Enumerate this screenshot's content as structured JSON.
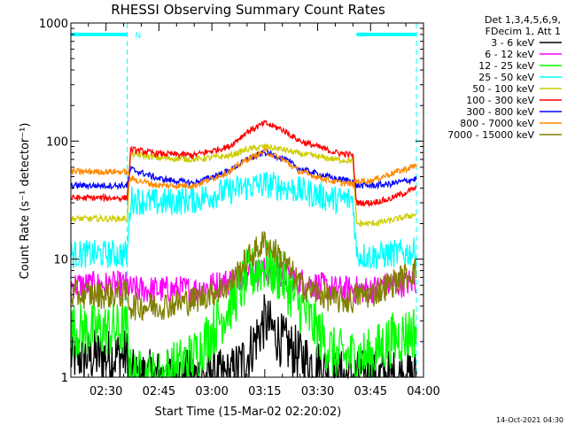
{
  "chart_data": {
    "type": "line",
    "title": "RHESSI Observing Summary Count Rates",
    "xlabel": "Start Time (15-Mar-02 02:20:02)",
    "ylabel": "Count Rate (s⁻¹ detector⁻¹)",
    "x_scale": "time",
    "y_scale": "log",
    "xlim": [
      "02:20:02",
      "04:00"
    ],
    "ylim": [
      1,
      1000
    ],
    "x_ticks": [
      "02:30",
      "02:45",
      "03:00",
      "03:15",
      "03:30",
      "03:45",
      "04:00"
    ],
    "y_ticks": [
      "1",
      "10",
      "100",
      "1000"
    ],
    "grid": false,
    "legend_placement": "outside-right",
    "legend_header": [
      "Det 1,3,4,5,6,9,",
      "FDecim 1, Att 1"
    ],
    "x": [
      "02:20",
      "02:30",
      "02:36",
      "02:37",
      "02:45",
      "02:55",
      "03:05",
      "03:10",
      "03:15",
      "03:20",
      "03:25",
      "03:35",
      "03:40",
      "03:41",
      "03:45",
      "03:50",
      "03:58"
    ],
    "series": [
      {
        "name": "3 - 6 keV",
        "color": "#000000",
        "values": [
          1.5,
          1.5,
          1.5,
          1,
          1,
          1,
          1,
          1.5,
          3,
          2,
          1.5,
          1,
          1,
          1,
          1,
          1,
          1
        ]
      },
      {
        "name": "6 - 12 keV",
        "color": "#ff00ff",
        "values": [
          6,
          6,
          6,
          5.5,
          5.5,
          5.5,
          6.5,
          7.5,
          8,
          7.5,
          6.5,
          5.5,
          5.5,
          5.5,
          5.5,
          6,
          6.5
        ]
      },
      {
        "name": "12 - 25 keV",
        "color": "#00ff00",
        "values": [
          2.5,
          2.5,
          2.5,
          1,
          1,
          1.5,
          4,
          7,
          9,
          7,
          4,
          1.5,
          1.5,
          1.5,
          1.5,
          2,
          2.5
        ]
      },
      {
        "name": "25 - 50 keV",
        "color": "#00ffff",
        "values": [
          11,
          11,
          11,
          32,
          30,
          32,
          38,
          41,
          43,
          41,
          38,
          32,
          32,
          11,
          10.5,
          11,
          11.5
        ]
      },
      {
        "name": "50 - 100 keV",
        "color": "#cccc00",
        "values": [
          22,
          22,
          22,
          78,
          72,
          70,
          75,
          85,
          90,
          85,
          78,
          70,
          68,
          20,
          20,
          21,
          24
        ]
      },
      {
        "name": "100 - 300 keV",
        "color": "#ff0000",
        "values": [
          33,
          33,
          33,
          85,
          78,
          76,
          90,
          120,
          142,
          125,
          100,
          80,
          76,
          30,
          30,
          32,
          40
        ]
      },
      {
        "name": "300 - 800 keV",
        "color": "#0000ff",
        "values": [
          42,
          42,
          42,
          58,
          48,
          44,
          56,
          70,
          80,
          72,
          58,
          48,
          46,
          42,
          42,
          43,
          48
        ]
      },
      {
        "name": "800 - 7000 keV",
        "color": "#ff8800",
        "values": [
          55,
          55,
          55,
          48,
          42,
          42,
          55,
          70,
          82,
          70,
          55,
          45,
          43,
          46,
          46,
          52,
          62
        ]
      },
      {
        "name": "7000 - 15000 keV",
        "color": "#808000",
        "values": [
          5,
          5,
          5,
          4,
          4,
          4.5,
          6,
          10,
          14,
          10,
          6,
          4.5,
          4.5,
          5,
          5,
          6,
          8
        ]
      }
    ],
    "annotations": [
      {
        "text": "N",
        "color": "#00ffff",
        "x": "02:37",
        "y": 800
      }
    ],
    "saa_intervals": [
      [
        "02:20",
        "02:36"
      ],
      [
        "03:41",
        "03:58"
      ]
    ],
    "saa_level": 800
  },
  "stamp": "14-Oct-2021 04:30"
}
